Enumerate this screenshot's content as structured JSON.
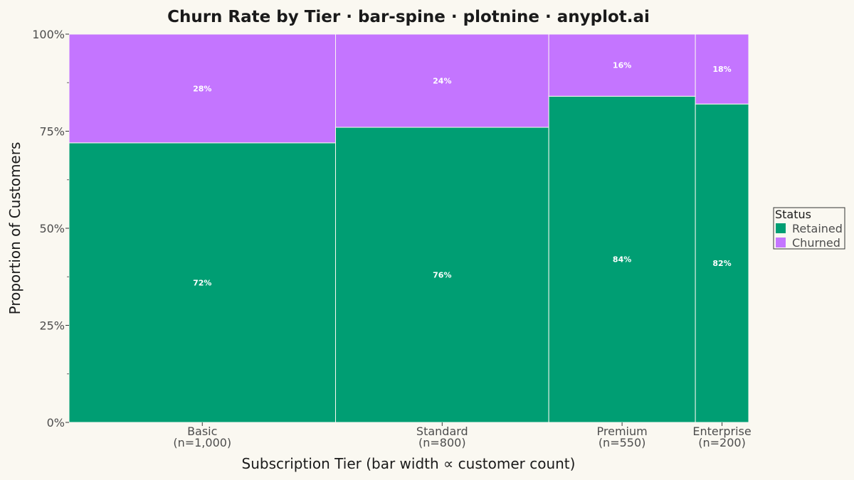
{
  "chart_data": {
    "type": "bar",
    "subtype": "spine",
    "title": "Churn Rate by Tier · bar-spine · plotnine · anyplot.ai",
    "xlabel": "Subscription Tier  (bar width ∝ customer count)",
    "ylabel": "Proportion of Customers",
    "ylim": [
      0,
      1
    ],
    "yticks": [
      0,
      0.25,
      0.5,
      0.75,
      1.0
    ],
    "ytick_labels": [
      "0%",
      "25%",
      "50%",
      "75%",
      "100%"
    ],
    "categories": [
      "Basic",
      "Standard",
      "Premium",
      "Enterprise"
    ],
    "category_sublabels": [
      "(n=1,000)",
      "(n=800)",
      "(n=550)",
      "(n=200)"
    ],
    "counts": [
      1000,
      800,
      550,
      200
    ],
    "series": [
      {
        "name": "Retained",
        "color": "#009E73",
        "values": [
          0.72,
          0.76,
          0.84,
          0.82
        ],
        "labels": [
          "72%",
          "76%",
          "84%",
          "82%"
        ]
      },
      {
        "name": "Churned",
        "color": "#C475FF",
        "values": [
          0.28,
          0.24,
          0.16,
          0.18
        ],
        "labels": [
          "28%",
          "24%",
          "16%",
          "18%"
        ]
      }
    ],
    "legend": {
      "title": "Status",
      "position": "right"
    },
    "grid": false
  }
}
